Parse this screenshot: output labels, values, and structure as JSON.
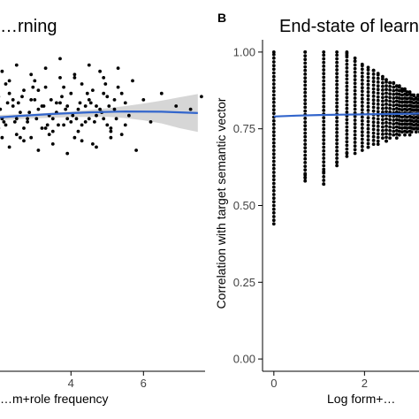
{
  "chart_data": [
    {
      "type": "scatter",
      "title": "…rning",
      "panel_letter": "",
      "xlabel": "…m+role frequency",
      "ylabel": "",
      "xlim": [
        0.7,
        7.7
      ],
      "ylim": [
        0.0,
        1.05
      ],
      "x_ticks": [
        4,
        6
      ],
      "x_tick_labels": [
        "4",
        "6"
      ],
      "y_ticks": [],
      "grid": false,
      "point_color": "#000000",
      "smooth_color": "#3366cc",
      "band_color": "#c8c8c8",
      "smooth_line": {
        "x": [
          0.8,
          1.5,
          2.5,
          3.5,
          4.5,
          5.5,
          6.5,
          7.5
        ],
        "y": [
          0.795,
          0.8,
          0.808,
          0.815,
          0.82,
          0.823,
          0.822,
          0.818
        ]
      },
      "smooth_band": {
        "x": [
          0.8,
          2.0,
          3.0,
          4.0,
          5.0,
          5.5,
          6.0,
          6.5,
          7.0,
          7.5
        ],
        "lower": [
          0.783,
          0.795,
          0.801,
          0.805,
          0.806,
          0.802,
          0.795,
          0.785,
          0.77,
          0.758
        ],
        "upper": [
          0.807,
          0.812,
          0.816,
          0.823,
          0.833,
          0.84,
          0.848,
          0.857,
          0.868,
          0.878
        ]
      },
      "scatter": {
        "x": [
          0.8,
          0.9,
          1.0,
          1.1,
          1.2,
          1.3,
          1.4,
          1.5,
          1.6,
          1.7,
          1.8,
          1.9,
          2.0,
          2.1,
          2.2,
          2.3,
          2.4,
          2.5,
          2.6,
          2.7,
          2.8,
          2.9,
          3.0,
          3.1,
          3.2,
          3.3,
          3.4,
          3.5,
          3.6,
          3.7,
          3.8,
          3.9,
          4.0,
          4.1,
          4.2,
          4.3,
          4.4,
          4.5,
          4.6,
          4.7,
          4.8,
          4.9,
          5.0,
          5.1,
          5.2,
          5.3,
          5.4,
          5.5,
          5.6,
          5.7,
          5.8,
          6.0,
          6.2,
          6.5,
          6.9,
          7.3,
          7.6,
          0.9,
          1.1,
          1.3,
          1.5,
          1.7,
          1.9,
          2.1,
          2.3,
          2.5,
          2.7,
          2.9,
          3.1,
          3.3,
          3.5,
          3.7,
          3.9,
          4.1,
          4.3,
          4.5,
          4.7,
          4.9,
          5.1,
          5.3,
          5.5,
          0.85,
          1.05,
          1.25,
          1.45,
          1.65,
          1.85,
          2.05,
          2.25,
          2.45,
          2.65,
          2.85,
          3.05,
          3.25,
          3.45,
          3.65,
          3.85,
          4.05,
          4.25,
          4.45,
          4.65,
          4.85,
          5.05,
          5.25,
          1.0,
          1.4,
          1.8,
          2.2,
          2.6,
          3.0,
          3.4,
          3.8,
          4.2,
          4.6,
          5.0,
          5.4,
          0.95,
          1.35,
          1.75,
          2.15,
          2.55,
          2.95,
          3.35,
          3.75,
          4.15,
          4.55,
          4.95,
          1.2,
          1.6,
          2.0,
          2.4,
          2.8,
          3.2,
          3.6,
          4.0,
          4.4,
          4.8,
          5.2,
          1.1,
          1.5,
          1.9,
          2.3,
          2.7,
          3.1,
          3.5,
          3.9,
          4.3,
          4.7,
          5.1,
          1.3,
          1.7,
          2.1,
          2.5,
          2.9,
          3.3,
          3.7,
          4.1,
          4.5,
          4.9
        ],
        "y": [
          0.84,
          0.8,
          0.78,
          0.86,
          0.82,
          0.79,
          0.88,
          0.81,
          0.77,
          0.85,
          0.83,
          0.76,
          0.87,
          0.8,
          0.78,
          0.92,
          0.84,
          0.75,
          0.82,
          0.89,
          0.79,
          0.74,
          0.86,
          0.83,
          0.77,
          0.9,
          0.81,
          0.76,
          0.85,
          0.93,
          0.78,
          0.8,
          0.88,
          0.74,
          0.83,
          0.91,
          0.79,
          0.86,
          0.72,
          0.84,
          0.95,
          0.8,
          0.87,
          0.77,
          0.83,
          0.9,
          0.75,
          0.85,
          0.81,
          0.92,
          0.7,
          0.86,
          0.79,
          0.88,
          0.84,
          0.83,
          0.87,
          0.9,
          0.75,
          0.93,
          0.72,
          0.96,
          0.74,
          0.95,
          0.71,
          0.97,
          0.73,
          0.94,
          0.7,
          0.96,
          0.72,
          0.99,
          0.69,
          0.94,
          0.73,
          0.97,
          0.71,
          0.93,
          0.74,
          0.96,
          0.78,
          0.82,
          0.79,
          0.84,
          0.8,
          0.86,
          0.81,
          0.83,
          0.85,
          0.79,
          0.87,
          0.82,
          0.8,
          0.84,
          0.86,
          0.78,
          0.83,
          0.81,
          0.85,
          0.88,
          0.79,
          0.82,
          0.84,
          0.8,
          0.77,
          0.89,
          0.76,
          0.91,
          0.74,
          0.92,
          0.75,
          0.9,
          0.76,
          0.89,
          0.78,
          0.88,
          0.86,
          0.81,
          0.88,
          0.79,
          0.85,
          0.9,
          0.78,
          0.87,
          0.8,
          0.85,
          0.91,
          0.73,
          0.87,
          0.77,
          0.86,
          0.8,
          0.84,
          0.82,
          0.79,
          0.84,
          0.83,
          0.86,
          0.81,
          0.76,
          0.82,
          0.88,
          0.77,
          0.89,
          0.8,
          0.84,
          0.78,
          0.81,
          0.76,
          0.91,
          0.82,
          0.74,
          0.8,
          0.86,
          0.77,
          0.85,
          0.93,
          0.8,
          0.88
        ]
      }
    },
    {
      "type": "scatter",
      "panel_letter": "B",
      "title": "End-state of learn…",
      "xlabel": "Log form+…",
      "ylabel": "Correlation with target semantic vector",
      "xlim": [
        -0.25,
        3.3
      ],
      "ylim": [
        -0.04,
        1.04
      ],
      "x_ticks": [
        0,
        2
      ],
      "x_tick_labels": [
        "0",
        "2"
      ],
      "y_ticks": [
        0.0,
        0.25,
        0.5,
        0.75,
        1.0
      ],
      "y_tick_labels": [
        "0.00",
        "0.25",
        "0.50",
        "0.75",
        "1.00"
      ],
      "grid": false,
      "point_color": "#000000",
      "smooth_color": "#3366cc",
      "smooth_line": {
        "x": [
          0.0,
          0.5,
          1.0,
          1.5,
          2.0,
          2.5,
          3.0,
          3.3
        ],
        "y": [
          0.79,
          0.793,
          0.795,
          0.796,
          0.797,
          0.798,
          0.799,
          0.8
        ]
      },
      "columns": [
        {
          "x": 0.0,
          "min": 0.44,
          "max": 1.0
        },
        {
          "x": 0.69,
          "min": 0.58,
          "max": 1.0
        },
        {
          "x": 1.1,
          "min": 0.57,
          "max": 1.0
        },
        {
          "x": 1.39,
          "min": 0.63,
          "max": 1.0
        },
        {
          "x": 1.61,
          "min": 0.66,
          "max": 1.0
        },
        {
          "x": 1.79,
          "min": 0.67,
          "max": 0.98
        },
        {
          "x": 1.95,
          "min": 0.68,
          "max": 0.96
        },
        {
          "x": 2.08,
          "min": 0.69,
          "max": 0.95
        },
        {
          "x": 2.2,
          "min": 0.7,
          "max": 0.94
        },
        {
          "x": 2.3,
          "min": 0.71,
          "max": 0.93
        },
        {
          "x": 2.4,
          "min": 0.72,
          "max": 0.92
        },
        {
          "x": 2.48,
          "min": 0.71,
          "max": 0.91
        },
        {
          "x": 2.56,
          "min": 0.72,
          "max": 0.9
        },
        {
          "x": 2.64,
          "min": 0.73,
          "max": 0.9
        },
        {
          "x": 2.71,
          "min": 0.72,
          "max": 0.89
        },
        {
          "x": 2.77,
          "min": 0.73,
          "max": 0.89
        },
        {
          "x": 2.83,
          "min": 0.74,
          "max": 0.88
        },
        {
          "x": 2.89,
          "min": 0.73,
          "max": 0.88
        },
        {
          "x": 2.94,
          "min": 0.74,
          "max": 0.87
        },
        {
          "x": 3.0,
          "min": 0.73,
          "max": 0.87
        },
        {
          "x": 3.04,
          "min": 0.74,
          "max": 0.86
        },
        {
          "x": 3.09,
          "min": 0.75,
          "max": 0.86
        },
        {
          "x": 3.14,
          "min": 0.74,
          "max": 0.85
        },
        {
          "x": 3.18,
          "min": 0.75,
          "max": 0.86
        },
        {
          "x": 3.22,
          "min": 0.74,
          "max": 0.85
        },
        {
          "x": 3.26,
          "min": 0.75,
          "max": 0.85
        }
      ],
      "scatter": {
        "x": [
          0.69,
          0.69,
          1.1,
          1.1,
          1.39,
          1.61,
          1.61,
          1.79,
          2.08,
          2.3,
          2.48
        ],
        "y": [
          0.59,
          0.6,
          0.57,
          0.61,
          0.64,
          0.67,
          0.99,
          0.97,
          0.69,
          0.7,
          0.71
        ]
      }
    }
  ]
}
